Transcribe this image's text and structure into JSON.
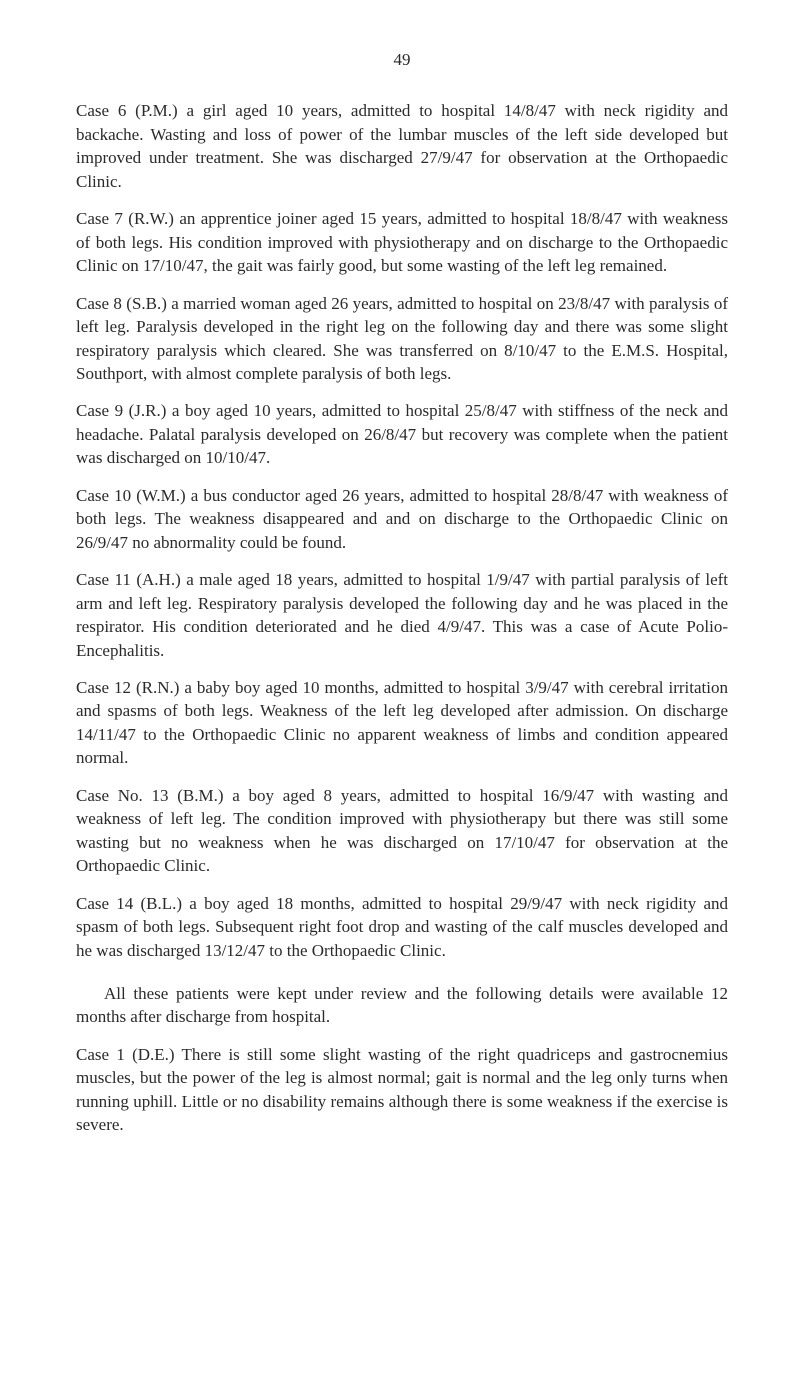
{
  "pageNumber": "49",
  "paragraphs": [
    {
      "text": "Case 6 (P.M.) a girl aged 10 years, admitted to hospital 14/8/47 with neck rigidity and backache. Wasting and loss of power of the lumbar muscles of the left side developed but improved under treatment. She was discharged 27/9/47 for observation at the Orthopaedic Clinic.",
      "indent": false
    },
    {
      "text": "Case 7 (R.W.) an apprentice joiner aged 15 years, admitted to hospital 18/8/47 with weakness of both legs. His condition improved with physiotherapy and on discharge to the Orthopaedic Clinic on 17/10/47, the gait was fairly good, but some wasting of the left leg remained.",
      "indent": false
    },
    {
      "text": "Case 8 (S.B.) a married woman aged 26 years, admitted to hospital on 23/8/47 with paralysis of left leg. Paralysis developed in the right leg on the following day and there was some slight respiratory paralysis which cleared. She was transferred on 8/10/47 to the E.M.S. Hospital, Southport, with almost complete paralysis of both legs.",
      "indent": false
    },
    {
      "text": "Case 9 (J.R.) a boy aged 10 years, admitted to hospital 25/8/47 with stiffness of the neck and headache. Palatal paralysis developed on 26/8/47 but recovery was complete when the patient was discharged on 10/10/47.",
      "indent": false
    },
    {
      "text": "Case 10 (W.M.) a bus conductor aged 26 years, admitted to hospital 28/8/47 with weakness of both legs. The weakness disappeared and and on discharge to the Orthopaedic Clinic on 26/9/47 no abnormality could be found.",
      "indent": false
    },
    {
      "text": "Case 11 (A.H.) a male aged 18 years, admitted to hospital 1/9/47 with partial paralysis of left arm and left leg. Respiratory paralysis developed the following day and he was placed in the respirator. His condition deteriorated and he died 4/9/47. This was a case of Acute Polio-Encephalitis.",
      "indent": false
    },
    {
      "text": "Case 12 (R.N.) a baby boy aged 10 months, admitted to hospital 3/9/47 with cerebral irritation and spasms of both legs. Weakness of the left leg developed after admission. On discharge 14/11/47 to the Orthopaedic Clinic no apparent weakness of limbs and condition appeared normal.",
      "indent": false
    },
    {
      "text": "Case No. 13 (B.M.) a boy aged 8 years, admitted to hospital 16/9/47 with wasting and weakness of left leg. The condition improved with physiotherapy but there was still some wasting but no weakness when he was discharged on 17/10/47 for observation at the Orthopaedic Clinic.",
      "indent": false
    },
    {
      "text": "Case 14 (B.L.) a boy aged 18 months, admitted to hospital 29/9/47 with neck rigidity and spasm of both legs. Subsequent right foot drop and wasting of the calf muscles developed and he was discharged 13/12/47 to the Orthopaedic Clinic.",
      "indent": false
    },
    {
      "text": "All these patients were kept under review and the following details were available 12 months after discharge from hospital.",
      "indent": true,
      "sectionGap": true
    },
    {
      "text": "Case 1 (D.E.) There is still some slight wasting of the right quadriceps and gastrocnemius muscles, but the power of the leg is almost normal; gait is normal and the leg only turns when running uphill. Little or no disability remains although there is some weakness if the exercise is severe.",
      "indent": false,
      "noMargin": true
    }
  ]
}
